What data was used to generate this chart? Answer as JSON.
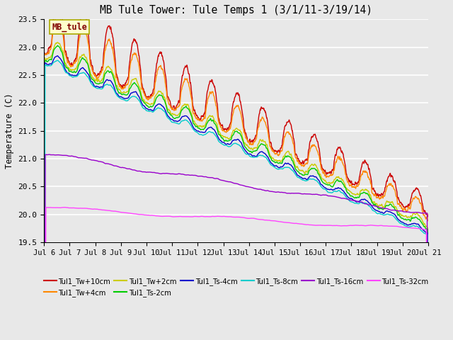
{
  "title": "MB Tule Tower: Tule Temps 1 (3/1/11-3/19/14)",
  "ylabel": "Temperature (C)",
  "ylim": [
    19.5,
    23.5
  ],
  "xlim": [
    0,
    15
  ],
  "plot_bg_color": "#e8e8e8",
  "series": [
    {
      "label": "Tul1_Tw+10cm",
      "color": "#cc0000",
      "lw": 1.0
    },
    {
      "label": "Tul1_Tw+4cm",
      "color": "#ff8800",
      "lw": 1.0
    },
    {
      "label": "Tul1_Tw+2cm",
      "color": "#cccc00",
      "lw": 1.0
    },
    {
      "label": "Tul1_Ts-2cm",
      "color": "#00cc00",
      "lw": 1.0
    },
    {
      "label": "Tul1_Ts-4cm",
      "color": "#0000cc",
      "lw": 1.0
    },
    {
      "label": "Tul1_Ts-8cm",
      "color": "#00cccc",
      "lw": 1.0
    },
    {
      "label": "Tul1_Ts-16cm",
      "color": "#9900cc",
      "lw": 1.0
    },
    {
      "label": "Tul1_Ts-32cm",
      "color": "#ff44ff",
      "lw": 1.0
    }
  ],
  "xtick_labels": [
    "Jul 6",
    "Jul 7",
    "Jul 8",
    "Jul 9",
    "Jul 10",
    "Jul 11",
    "Jul 12",
    "Jul 13",
    "Jul 14",
    "Jul 15",
    "Jul 16",
    "Jul 17",
    "Jul 18",
    "Jul 19",
    "Jul 20",
    "Jul 21"
  ],
  "ytick_vals": [
    19.5,
    20.0,
    20.5,
    21.0,
    21.5,
    22.0,
    22.5,
    23.0,
    23.5
  ],
  "inset_label": "MB_tule",
  "inset_color": "#800000",
  "inset_bg": "#ffffcc",
  "inset_edge": "#aaaa00"
}
